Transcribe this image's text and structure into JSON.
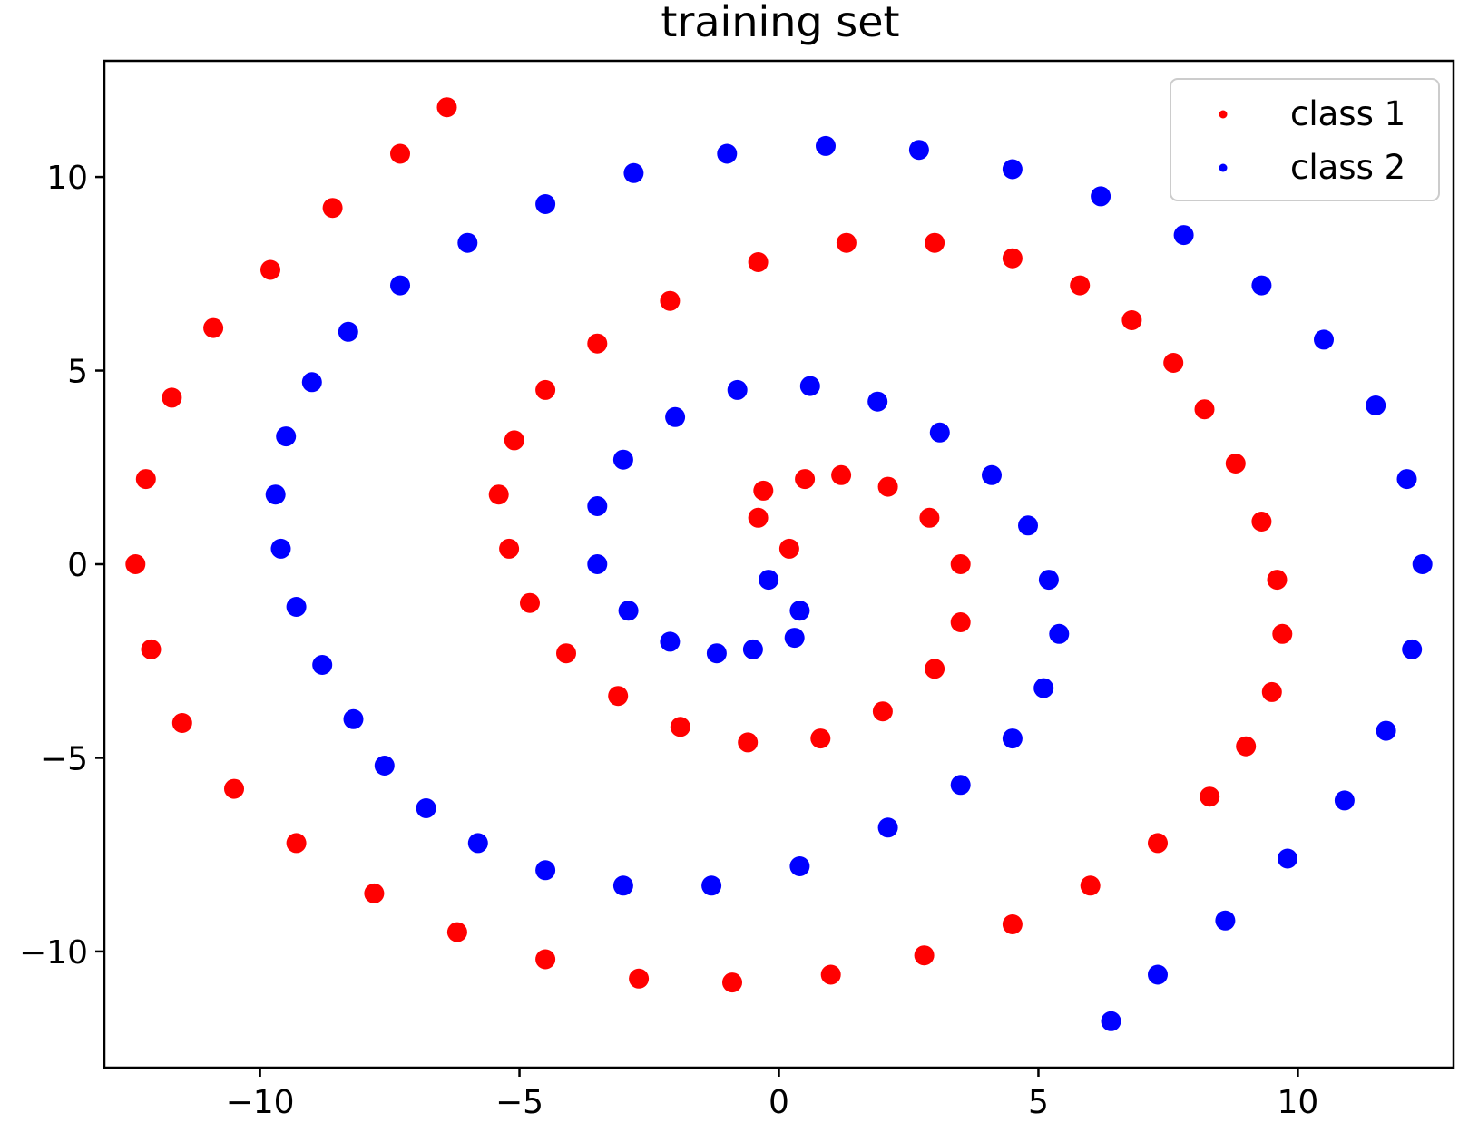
{
  "chart_data": {
    "type": "scatter",
    "title": "training set",
    "xlabel": "",
    "ylabel": "",
    "xlim": [
      -13,
      13
    ],
    "ylim": [
      -13,
      13
    ],
    "xticks": [
      -10,
      -5,
      0,
      5,
      10
    ],
    "yticks": [
      -10,
      -5,
      0,
      5,
      10
    ],
    "xtick_labels": [
      "−10",
      "−5",
      "0",
      "5",
      "10"
    ],
    "ytick_labels": [
      "−10",
      "−5",
      "0",
      "5",
      "10"
    ],
    "grid": false,
    "legend_position": "top-right",
    "series": [
      {
        "name": "class 1",
        "color": "#ff0000",
        "x": [
          0.2,
          -0.4,
          -0.3,
          0.5,
          1.2,
          2.1,
          2.9,
          3.5,
          3.5,
          3.0,
          2.0,
          0.8,
          -0.6,
          -1.9,
          -3.1,
          -4.1,
          -4.8,
          -5.2,
          -5.4,
          -5.1,
          -4.5,
          -3.5,
          -2.1,
          -0.4,
          1.3,
          3.0,
          4.5,
          5.8,
          6.8,
          7.6,
          8.2,
          8.8,
          9.3,
          9.6,
          9.7,
          9.5,
          9.0,
          8.3,
          7.3,
          6.0,
          4.5,
          2.8,
          1.0,
          -0.9,
          -2.7,
          -4.5,
          -6.2,
          -7.8,
          -9.3,
          -10.5,
          -11.5,
          -12.1,
          -12.4,
          -12.2,
          -11.7,
          -10.9,
          -9.8,
          -8.6,
          -7.3,
          -6.4
        ],
        "y": [
          0.4,
          1.2,
          1.9,
          2.2,
          2.3,
          2.0,
          1.2,
          0.0,
          -1.5,
          -2.7,
          -3.8,
          -4.5,
          -4.6,
          -4.2,
          -3.4,
          -2.3,
          -1.0,
          0.4,
          1.8,
          3.2,
          4.5,
          5.7,
          6.8,
          7.8,
          8.3,
          8.3,
          7.9,
          7.2,
          6.3,
          5.2,
          4.0,
          2.6,
          1.1,
          -0.4,
          -1.8,
          -3.3,
          -4.7,
          -6.0,
          -7.2,
          -8.3,
          -9.3,
          -10.1,
          -10.6,
          -10.8,
          -10.7,
          -10.2,
          -9.5,
          -8.5,
          -7.2,
          -5.8,
          -4.1,
          -2.2,
          0.0,
          2.2,
          4.3,
          6.1,
          7.6,
          9.2,
          10.6,
          11.8
        ]
      },
      {
        "name": "class 2",
        "color": "#0000ff",
        "x": [
          -0.2,
          0.4,
          0.3,
          -0.5,
          -1.2,
          -2.1,
          -2.9,
          -3.5,
          -3.5,
          -3.0,
          -2.0,
          -0.8,
          0.6,
          1.9,
          3.1,
          4.1,
          4.8,
          5.2,
          5.4,
          5.1,
          4.5,
          3.5,
          2.1,
          0.4,
          -1.3,
          -3.0,
          -4.5,
          -5.8,
          -6.8,
          -7.6,
          -8.2,
          -8.8,
          -9.3,
          -9.6,
          -9.7,
          -9.5,
          -9.0,
          -8.3,
          -7.3,
          -6.0,
          -4.5,
          -2.8,
          -1.0,
          0.9,
          2.7,
          4.5,
          6.2,
          7.8,
          9.3,
          10.5,
          11.5,
          12.1,
          12.4,
          12.2,
          11.7,
          10.9,
          9.8,
          8.6,
          7.3,
          6.4
        ],
        "y": [
          -0.4,
          -1.2,
          -1.9,
          -2.2,
          -2.3,
          -2.0,
          -1.2,
          0.0,
          1.5,
          2.7,
          3.8,
          4.5,
          4.6,
          4.2,
          3.4,
          2.3,
          1.0,
          -0.4,
          -1.8,
          -3.2,
          -4.5,
          -5.7,
          -6.8,
          -7.8,
          -8.3,
          -8.3,
          -7.9,
          -7.2,
          -6.3,
          -5.2,
          -4.0,
          -2.6,
          -1.1,
          0.4,
          1.8,
          3.3,
          4.7,
          6.0,
          7.2,
          8.3,
          9.3,
          10.1,
          10.6,
          10.8,
          10.7,
          10.2,
          9.5,
          8.5,
          7.2,
          5.8,
          4.1,
          2.2,
          0.0,
          -2.2,
          -4.3,
          -6.1,
          -7.6,
          -9.2,
          -10.6,
          -11.8
        ]
      }
    ]
  }
}
